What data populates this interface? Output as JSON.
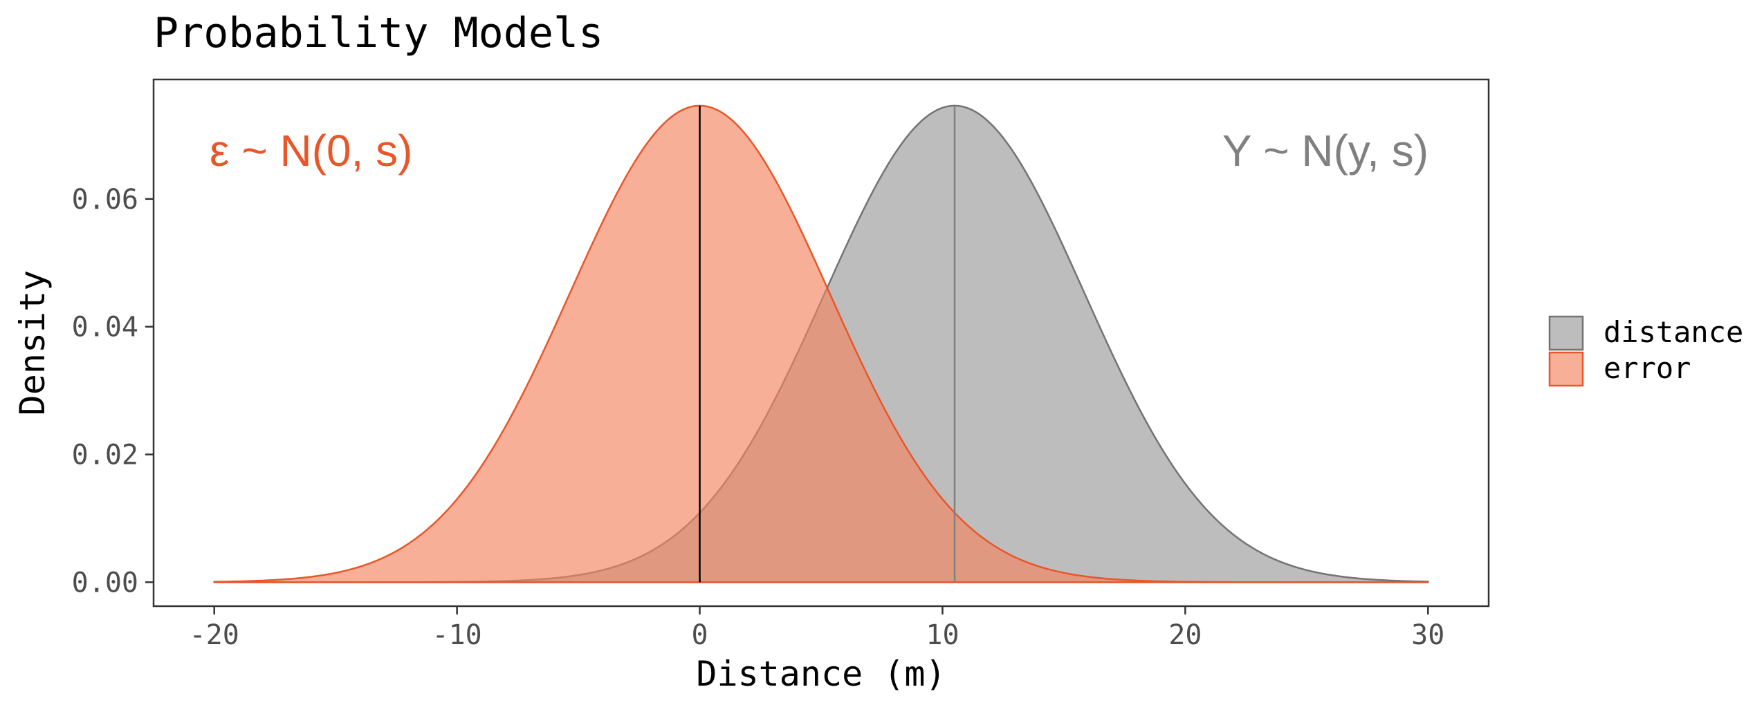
{
  "chart_data": {
    "type": "area",
    "title": "Probability Models",
    "xlabel": "Distance (m)",
    "ylabel": "Density",
    "xlim": [
      -22.5,
      32.5
    ],
    "ylim": [
      -0.00375,
      0.0787
    ],
    "x_ticks": [
      -20,
      -10,
      0,
      10,
      20,
      30
    ],
    "x_tick_labels": [
      "-20",
      "-10",
      "0",
      "10",
      "20",
      "30"
    ],
    "y_ticks": [
      0.0,
      0.02,
      0.04,
      0.06
    ],
    "y_tick_labels": [
      "0.00",
      "0.02",
      "0.04",
      "0.06"
    ],
    "grid": false,
    "legend_position": "right",
    "series": [
      {
        "name": "distance",
        "distribution": "normal",
        "mean": 10.5,
        "sd": 5.35,
        "x_range": [
          -20,
          30
        ],
        "peak_density": 0.0746,
        "vline_at": 10.5,
        "fill": "#bdbdbd",
        "stroke": "#737373",
        "vline_color": "#808080"
      },
      {
        "name": "error",
        "distribution": "normal",
        "mean": 0,
        "sd": 5.35,
        "x_range": [
          -20,
          30
        ],
        "peak_density": 0.0746,
        "vline_at": 0,
        "fill": "#f4845f",
        "fill_opacity": 0.65,
        "stroke": "#e8562a",
        "vline_color": "#000000"
      }
    ],
    "annotations": [
      {
        "text": "ε ~ N(0, s)",
        "color": "#e8562a",
        "position": "top-left"
      },
      {
        "text": "Y ~ N(y, s)",
        "color": "#808080",
        "position": "top-right"
      }
    ]
  }
}
